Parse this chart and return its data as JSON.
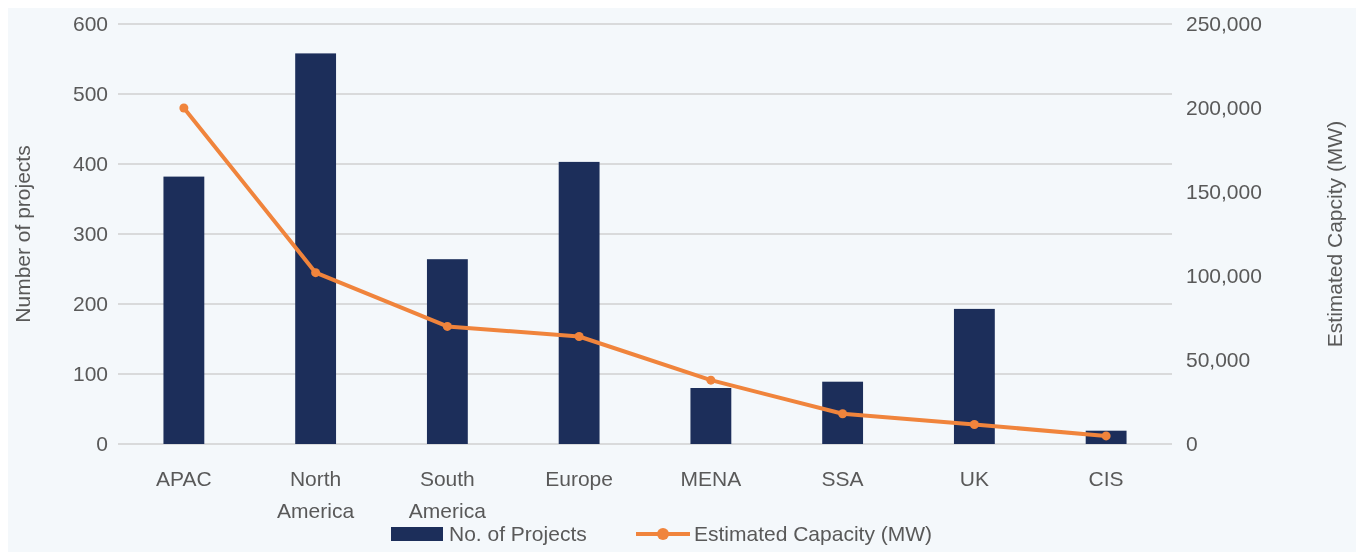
{
  "chart_data": {
    "type": "bar",
    "categories": [
      "APAC",
      "North America",
      "South America",
      "Europe",
      "MENA",
      "SSA",
      "UK",
      "CIS"
    ],
    "series": [
      {
        "name": "No. of Projects",
        "color": "#1c2e5a",
        "values": [
          382,
          558,
          264,
          403,
          80,
          89,
          193,
          19
        ]
      },
      {
        "name": "Estimated Capacity (MW)",
        "type": "line",
        "axis": "y2",
        "color": "#f0843c",
        "values": [
          200000,
          102000,
          70000,
          64000,
          38000,
          18000,
          11600,
          4800
        ]
      }
    ],
    "ylabel": "Number of projects",
    "y2label": "Estimated Capcity (MW)",
    "ylim": [
      0,
      600
    ],
    "yticks": [
      0,
      100,
      200,
      300,
      400,
      500,
      600
    ],
    "y2lim": [
      0,
      250000
    ],
    "y2ticks": [
      {
        "value": 0,
        "label": "0"
      },
      {
        "value": 50000,
        "label": "50,000"
      },
      {
        "value": 100000,
        "label": "100,000"
      },
      {
        "value": 150000,
        "label": "150,000"
      },
      {
        "value": 200000,
        "label": "200,000"
      },
      {
        "value": 250000,
        "label": "250,000"
      }
    ],
    "grid": "y",
    "legend": "bottom",
    "marker": "circle",
    "line_style": "solid"
  }
}
